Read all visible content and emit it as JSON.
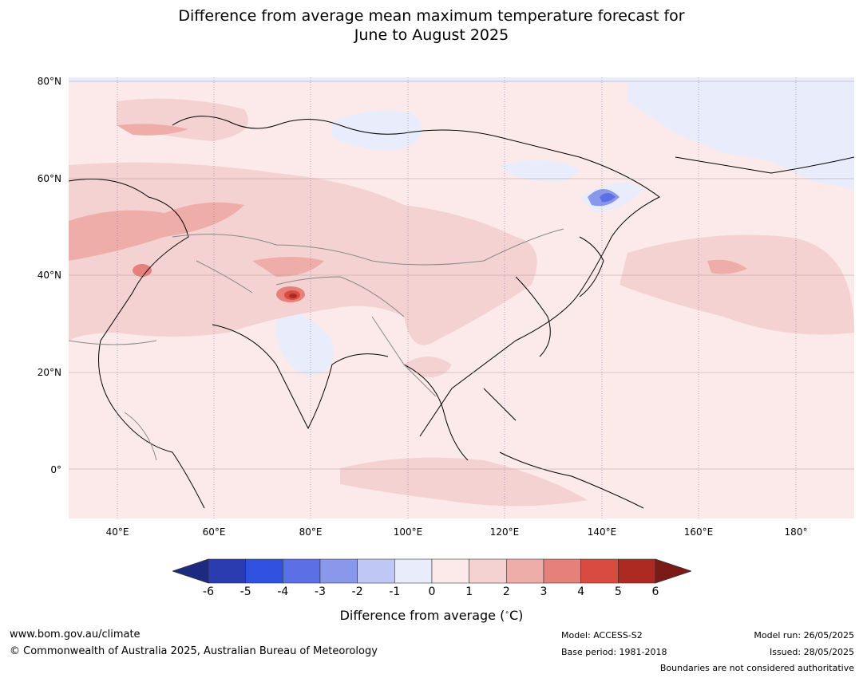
{
  "title_line1": "Difference from average mean maximum temperature forecast for",
  "title_line2": "June to August 2025",
  "latitude_labels": [
    "80°N",
    "60°N",
    "40°N",
    "20°N",
    "0°"
  ],
  "longitude_labels": [
    "40°E",
    "60°E",
    "80°E",
    "100°E",
    "120°E",
    "140°E",
    "160°E",
    "180°"
  ],
  "colorbar": {
    "ticks": [
      "-6",
      "-5",
      "-4",
      "-3",
      "-2",
      "-1",
      "0",
      "1",
      "2",
      "3",
      "4",
      "5",
      "6"
    ],
    "colors": [
      "#1c2a80",
      "#2a3cb0",
      "#3050e0",
      "#5c6fe4",
      "#8a98ec",
      "#bfc7f4",
      "#e9ecfb",
      "#fceaea",
      "#f5d2d2",
      "#eeada9",
      "#e6807a",
      "#d94a40",
      "#ad2a22",
      "#7a1b17"
    ],
    "label": "Difference from average ($^\\circ$C)"
  },
  "footer": {
    "website": "www.bom.gov.au/climate",
    "copyright": "© Commonwealth of Australia 2025, Australian Bureau of Meteorology",
    "model": "Model: ACCESS-S2",
    "base_period": "Base period: 1981-2018",
    "model_run": "Model run: 26/05/2025",
    "issued": "Issued: 28/05/2025",
    "disclaimer": "Boundaries are not considered authoritative"
  }
}
